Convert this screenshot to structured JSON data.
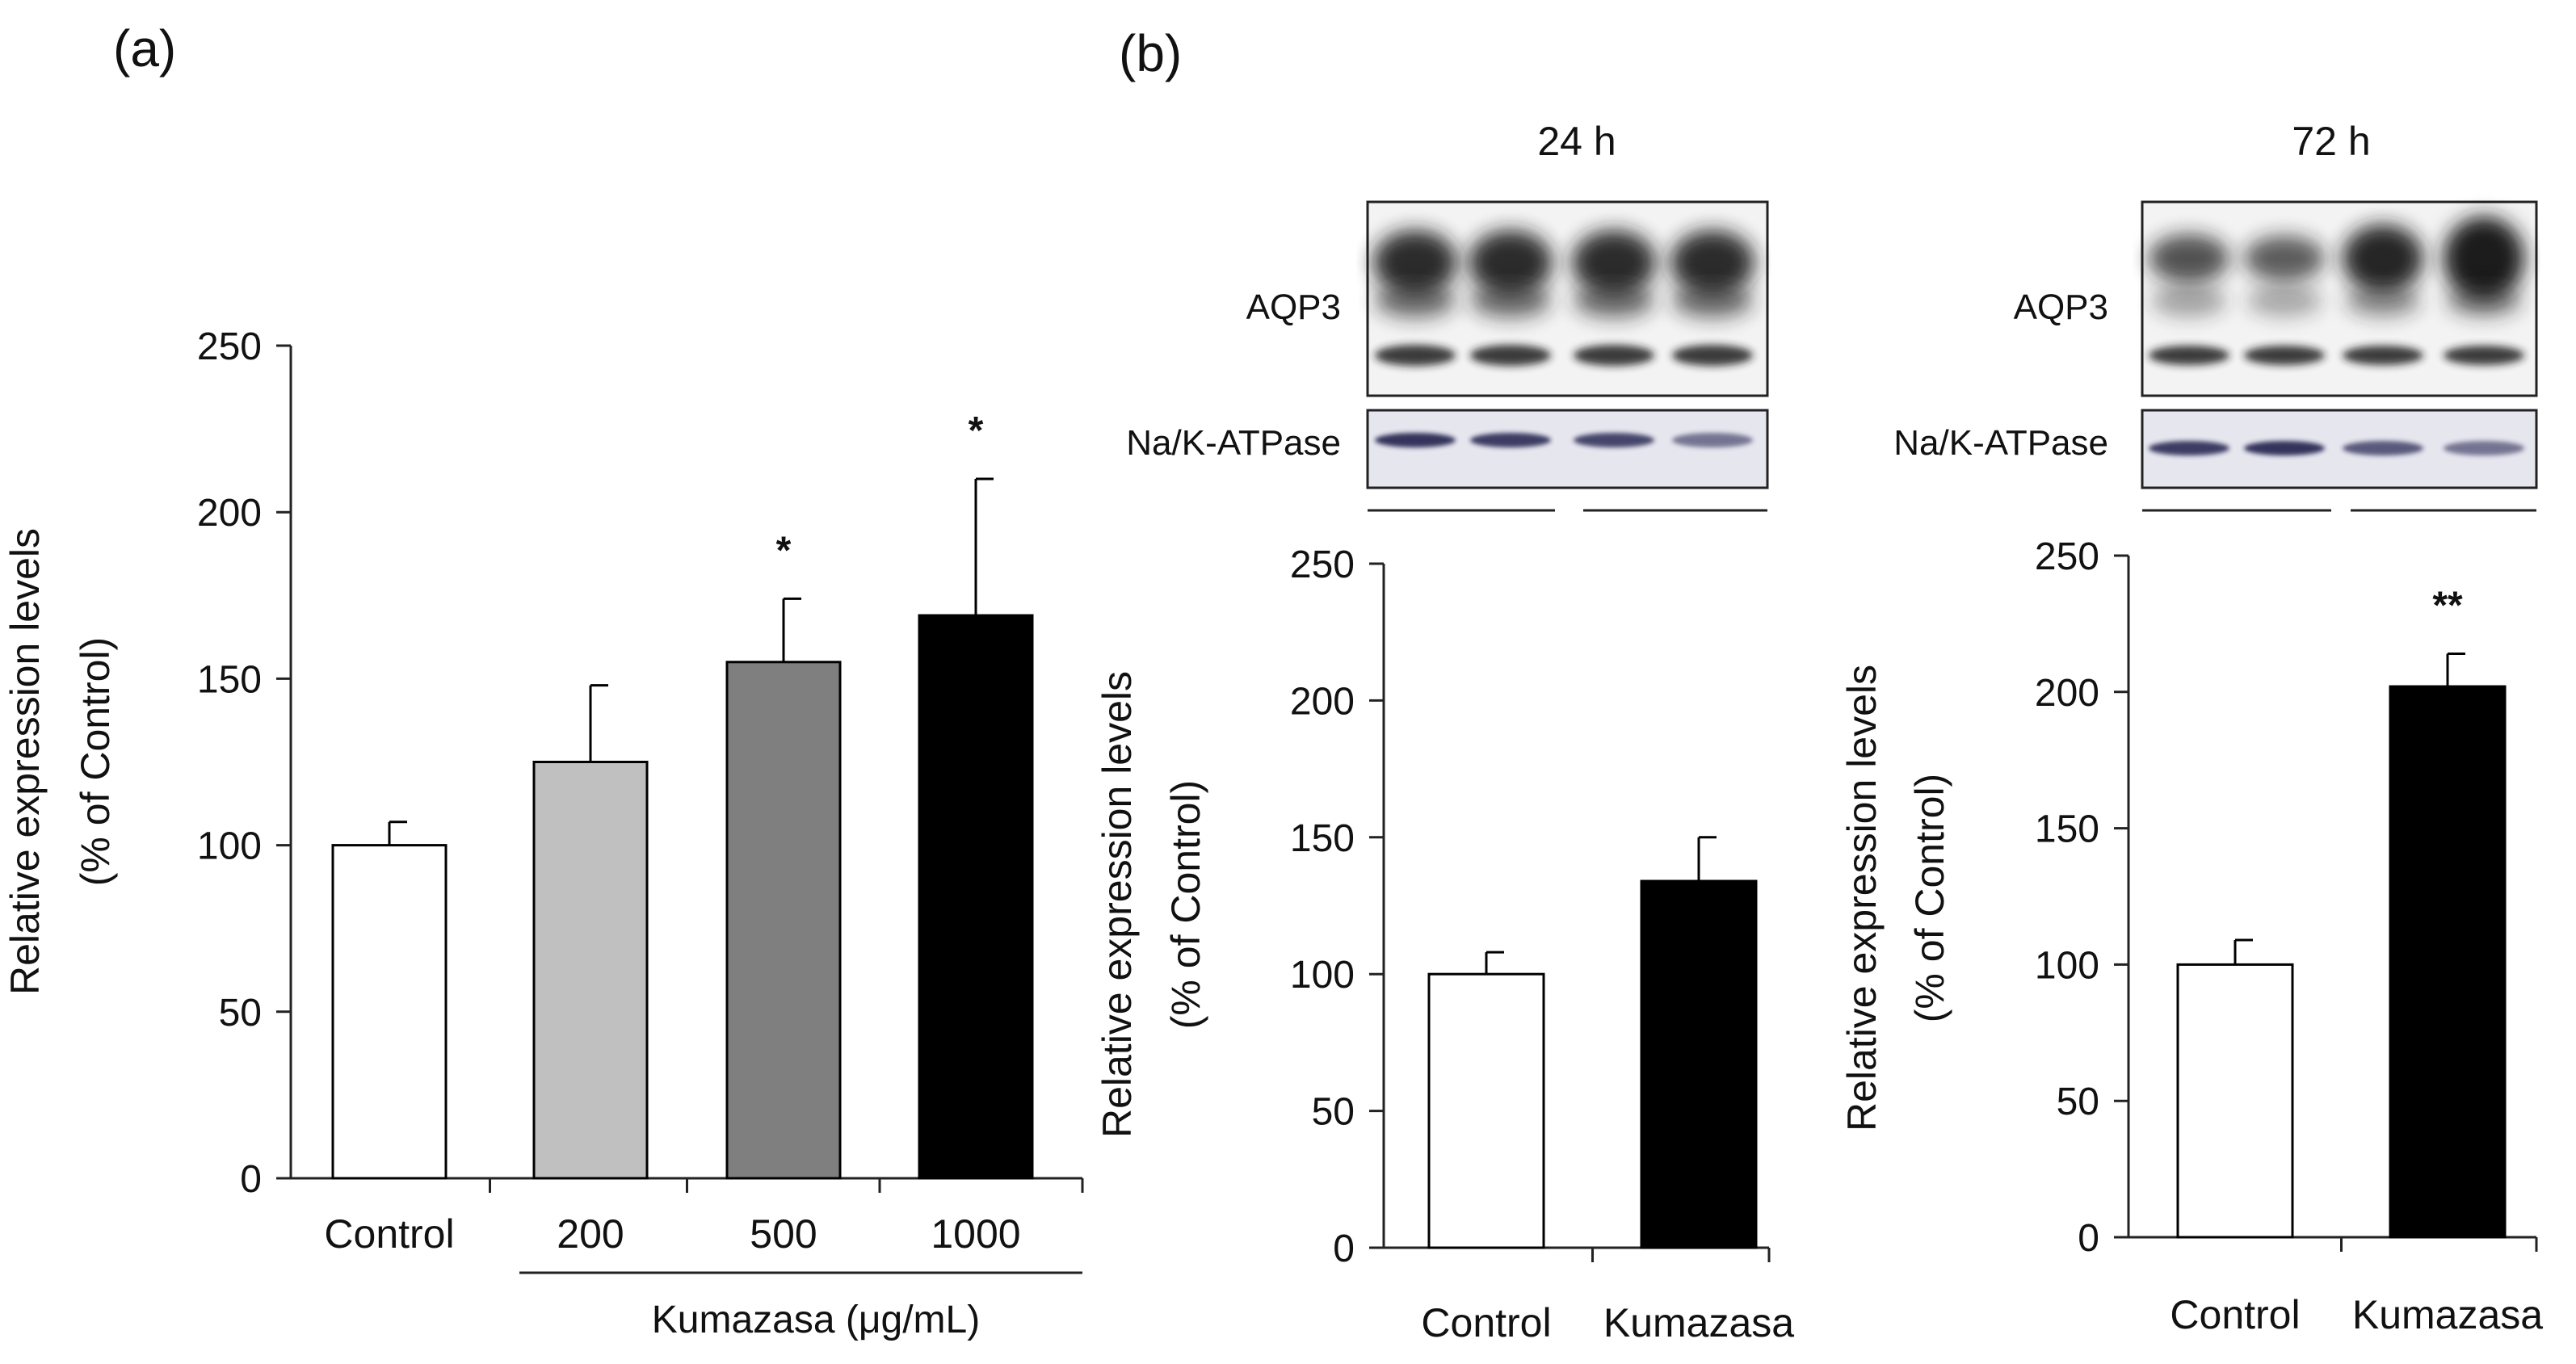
{
  "panel_a": {
    "label": "(a)",
    "group_label": "Kumazasa (μg/mL)"
  },
  "panel_b": {
    "label": "(b)",
    "blot_24h": {
      "title": "24 h",
      "band1": "AQP3",
      "band2": "Na/K-ATPase"
    },
    "blot_72h": {
      "title": "72 h",
      "band1": "AQP3",
      "band2": "Na/K-ATPase"
    }
  },
  "colors": {
    "control": "#ffffff",
    "c200": "#c0c0c0",
    "c500": "#7f7f7f",
    "c1000": "#000000",
    "kumazasa": "#000000",
    "blot_bg": "#f3f3f3",
    "band": "#1a1a1a",
    "na_bg": "#e6e6ef",
    "na_band": "#2a2a55"
  },
  "chart_data": [
    {
      "id": "a",
      "type": "bar",
      "categories": [
        "Control",
        "200",
        "500",
        "1000"
      ],
      "values": [
        100,
        125,
        155,
        169
      ],
      "errors": [
        7,
        23,
        19,
        41
      ],
      "significance": [
        "",
        "",
        "*",
        "*"
      ],
      "ylabel_line1": "Relative expression levels",
      "ylabel_line2": "(% of Control)",
      "ylim": [
        0,
        250
      ],
      "yticks": [
        0,
        50,
        100,
        150,
        200,
        250
      ],
      "ytick_labels": [
        "0",
        "50",
        "100",
        "150",
        "200",
        "250"
      ],
      "grid": false
    },
    {
      "id": "b24",
      "type": "bar",
      "categories": [
        "Control",
        "Kumazasa"
      ],
      "values": [
        100,
        134
      ],
      "errors": [
        8,
        16
      ],
      "significance": [
        "",
        ""
      ],
      "ylabel_line1": "Relative expression levels",
      "ylabel_line2": "(% of Control)",
      "ylim": [
        0,
        250
      ],
      "yticks": [
        0,
        50,
        100,
        150,
        200,
        250
      ],
      "ytick_labels": [
        "0",
        "50",
        "100",
        "150",
        "200",
        "250"
      ],
      "grid": false
    },
    {
      "id": "b72",
      "type": "bar",
      "categories": [
        "Control",
        "Kumazasa"
      ],
      "values": [
        100,
        202
      ],
      "errors": [
        9,
        12
      ],
      "significance": [
        "",
        "**"
      ],
      "ylabel_line1": "Relative expression levels",
      "ylabel_line2": "(% of Control)",
      "ylim": [
        0,
        250
      ],
      "yticks": [
        0,
        50,
        100,
        150,
        200,
        250
      ],
      "ytick_labels": [
        "0",
        "50",
        "100",
        "150",
        "200",
        "250"
      ],
      "grid": false
    }
  ]
}
